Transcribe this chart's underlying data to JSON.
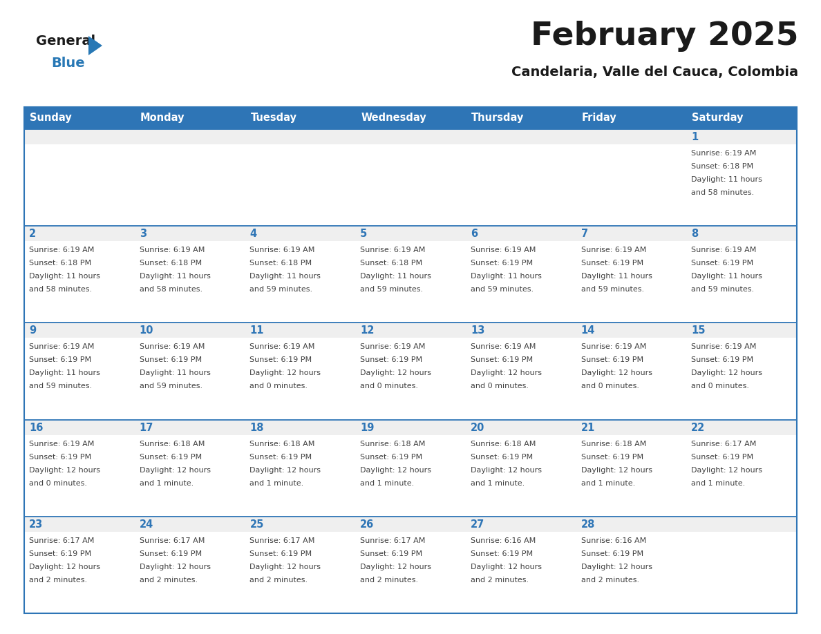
{
  "title": "February 2025",
  "subtitle": "Candelaria, Valle del Cauca, Colombia",
  "header_bg": "#2E75B6",
  "header_text_color": "#FFFFFF",
  "cell_bg_daynum": "#EFEFEF",
  "cell_bg_main": "#FFFFFF",
  "cell_border_color": "#2E75B6",
  "day_headers": [
    "Sunday",
    "Monday",
    "Tuesday",
    "Wednesday",
    "Thursday",
    "Friday",
    "Saturday"
  ],
  "title_color": "#1a1a1a",
  "subtitle_color": "#1a1a1a",
  "day_num_color": "#2E75B6",
  "cell_text_color": "#404040",
  "logo_general_color": "#1a1a1a",
  "logo_blue_color": "#2878B5",
  "logo_triangle_color": "#2878B5",
  "calendar_data": [
    [
      null,
      null,
      null,
      null,
      null,
      null,
      {
        "day": "1",
        "sunrise": "6:19 AM",
        "sunset": "6:18 PM",
        "daylight1": "Daylight: 11 hours",
        "daylight2": "and 58 minutes."
      }
    ],
    [
      {
        "day": "2",
        "sunrise": "6:19 AM",
        "sunset": "6:18 PM",
        "daylight1": "Daylight: 11 hours",
        "daylight2": "and 58 minutes."
      },
      {
        "day": "3",
        "sunrise": "6:19 AM",
        "sunset": "6:18 PM",
        "daylight1": "Daylight: 11 hours",
        "daylight2": "and 58 minutes."
      },
      {
        "day": "4",
        "sunrise": "6:19 AM",
        "sunset": "6:18 PM",
        "daylight1": "Daylight: 11 hours",
        "daylight2": "and 59 minutes."
      },
      {
        "day": "5",
        "sunrise": "6:19 AM",
        "sunset": "6:18 PM",
        "daylight1": "Daylight: 11 hours",
        "daylight2": "and 59 minutes."
      },
      {
        "day": "6",
        "sunrise": "6:19 AM",
        "sunset": "6:19 PM",
        "daylight1": "Daylight: 11 hours",
        "daylight2": "and 59 minutes."
      },
      {
        "day": "7",
        "sunrise": "6:19 AM",
        "sunset": "6:19 PM",
        "daylight1": "Daylight: 11 hours",
        "daylight2": "and 59 minutes."
      },
      {
        "day": "8",
        "sunrise": "6:19 AM",
        "sunset": "6:19 PM",
        "daylight1": "Daylight: 11 hours",
        "daylight2": "and 59 minutes."
      }
    ],
    [
      {
        "day": "9",
        "sunrise": "6:19 AM",
        "sunset": "6:19 PM",
        "daylight1": "Daylight: 11 hours",
        "daylight2": "and 59 minutes."
      },
      {
        "day": "10",
        "sunrise": "6:19 AM",
        "sunset": "6:19 PM",
        "daylight1": "Daylight: 11 hours",
        "daylight2": "and 59 minutes."
      },
      {
        "day": "11",
        "sunrise": "6:19 AM",
        "sunset": "6:19 PM",
        "daylight1": "Daylight: 12 hours",
        "daylight2": "and 0 minutes."
      },
      {
        "day": "12",
        "sunrise": "6:19 AM",
        "sunset": "6:19 PM",
        "daylight1": "Daylight: 12 hours",
        "daylight2": "and 0 minutes."
      },
      {
        "day": "13",
        "sunrise": "6:19 AM",
        "sunset": "6:19 PM",
        "daylight1": "Daylight: 12 hours",
        "daylight2": "and 0 minutes."
      },
      {
        "day": "14",
        "sunrise": "6:19 AM",
        "sunset": "6:19 PM",
        "daylight1": "Daylight: 12 hours",
        "daylight2": "and 0 minutes."
      },
      {
        "day": "15",
        "sunrise": "6:19 AM",
        "sunset": "6:19 PM",
        "daylight1": "Daylight: 12 hours",
        "daylight2": "and 0 minutes."
      }
    ],
    [
      {
        "day": "16",
        "sunrise": "6:19 AM",
        "sunset": "6:19 PM",
        "daylight1": "Daylight: 12 hours",
        "daylight2": "and 0 minutes."
      },
      {
        "day": "17",
        "sunrise": "6:18 AM",
        "sunset": "6:19 PM",
        "daylight1": "Daylight: 12 hours",
        "daylight2": "and 1 minute."
      },
      {
        "day": "18",
        "sunrise": "6:18 AM",
        "sunset": "6:19 PM",
        "daylight1": "Daylight: 12 hours",
        "daylight2": "and 1 minute."
      },
      {
        "day": "19",
        "sunrise": "6:18 AM",
        "sunset": "6:19 PM",
        "daylight1": "Daylight: 12 hours",
        "daylight2": "and 1 minute."
      },
      {
        "day": "20",
        "sunrise": "6:18 AM",
        "sunset": "6:19 PM",
        "daylight1": "Daylight: 12 hours",
        "daylight2": "and 1 minute."
      },
      {
        "day": "21",
        "sunrise": "6:18 AM",
        "sunset": "6:19 PM",
        "daylight1": "Daylight: 12 hours",
        "daylight2": "and 1 minute."
      },
      {
        "day": "22",
        "sunrise": "6:17 AM",
        "sunset": "6:19 PM",
        "daylight1": "Daylight: 12 hours",
        "daylight2": "and 1 minute."
      }
    ],
    [
      {
        "day": "23",
        "sunrise": "6:17 AM",
        "sunset": "6:19 PM",
        "daylight1": "Daylight: 12 hours",
        "daylight2": "and 2 minutes."
      },
      {
        "day": "24",
        "sunrise": "6:17 AM",
        "sunset": "6:19 PM",
        "daylight1": "Daylight: 12 hours",
        "daylight2": "and 2 minutes."
      },
      {
        "day": "25",
        "sunrise": "6:17 AM",
        "sunset": "6:19 PM",
        "daylight1": "Daylight: 12 hours",
        "daylight2": "and 2 minutes."
      },
      {
        "day": "26",
        "sunrise": "6:17 AM",
        "sunset": "6:19 PM",
        "daylight1": "Daylight: 12 hours",
        "daylight2": "and 2 minutes."
      },
      {
        "day": "27",
        "sunrise": "6:16 AM",
        "sunset": "6:19 PM",
        "daylight1": "Daylight: 12 hours",
        "daylight2": "and 2 minutes."
      },
      {
        "day": "28",
        "sunrise": "6:16 AM",
        "sunset": "6:19 PM",
        "daylight1": "Daylight: 12 hours",
        "daylight2": "and 2 minutes."
      },
      null
    ]
  ]
}
